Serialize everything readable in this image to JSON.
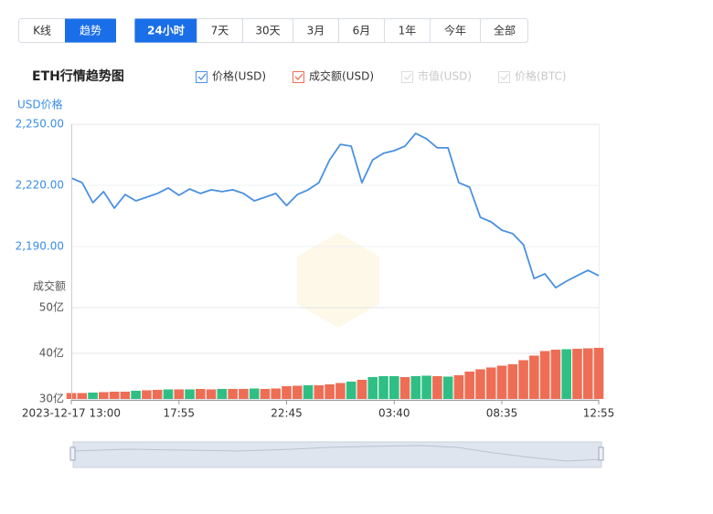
{
  "view_tabs": [
    "K线",
    "趋势"
  ],
  "period_tabs": [
    "24小时",
    "7天",
    "30天",
    "3月",
    "6月",
    "1年",
    "今年",
    "全部"
  ],
  "legend_disabled": [
    "市值(USD)",
    "价格(BTC)"
  ],
  "chart_data": {
    "type": "line",
    "title": "ETH行情趋势图",
    "y_label": "USD价格",
    "y2_label": "成交额",
    "categories": [
      "2023-12-17 13:00",
      null,
      null,
      null,
      null,
      null,
      null,
      null,
      null,
      null,
      "17:55",
      null,
      null,
      null,
      null,
      null,
      null,
      null,
      null,
      null,
      "22:45",
      null,
      null,
      null,
      null,
      null,
      null,
      null,
      null,
      null,
      "03:40",
      null,
      null,
      null,
      null,
      null,
      null,
      null,
      null,
      null,
      "08:35",
      null,
      null,
      null,
      null,
      null,
      null,
      null,
      null,
      "12:55"
    ],
    "ylim": [
      2160,
      2250
    ],
    "yticks": [
      {
        "value": 2190,
        "label": "2,190.00"
      },
      {
        "value": 2220,
        "label": "2,220.00"
      },
      {
        "value": 2250,
        "label": "2,250.00"
      }
    ],
    "y2lim": [
      30,
      50
    ],
    "y2ticks": [
      {
        "value": 30,
        "label": "30亿"
      },
      {
        "value": 40,
        "label": "40亿"
      },
      {
        "value": 50,
        "label": "50亿"
      }
    ],
    "grid": true,
    "series": [
      {
        "name": "价格(USD)",
        "color": "#4a90e2",
        "values": [
          2223.6,
          2221.3,
          2211.5,
          2216.9,
          2208.8,
          2215.5,
          2212.4,
          2214.2,
          2216,
          2218.7,
          2215.1,
          2218.2,
          2216,
          2217.8,
          2216.9,
          2217.8,
          2216,
          2212.4,
          2214.2,
          2216,
          2210.1,
          2215.5,
          2217.8,
          2221.3,
          2232.5,
          2240.1,
          2239.2,
          2221.3,
          2232.5,
          2235.7,
          2237,
          2239.2,
          2245.5,
          2242.8,
          2238.4,
          2238.4,
          2221.3,
          2219.1,
          2204.3,
          2202.1,
          2198,
          2196.3,
          2190.9,
          2174.3,
          2176.6,
          2169.8,
          2173,
          2175.7,
          2178.3,
          2175.7
        ]
      },
      {
        "name": "成交额(USD)",
        "type": "bar",
        "axis": "y2",
        "color": "#ee6e55",
        "values": [
          31.3,
          31.3,
          31.4,
          31.5,
          31.6,
          31.6,
          31.8,
          31.9,
          32,
          32.1,
          32.1,
          32.1,
          32.2,
          32.1,
          32.2,
          32.2,
          32.2,
          32.3,
          32.2,
          32.3,
          32.8,
          32.9,
          33,
          33,
          33.2,
          33.5,
          33.8,
          34.2,
          34.8,
          35,
          35,
          34.8,
          35,
          35.1,
          35,
          34.9,
          35.2,
          36,
          36.5,
          36.9,
          37.3,
          37.6,
          38.5,
          39.5,
          40.5,
          40.8,
          40.9,
          41,
          41.1,
          41.2
        ],
        "colors": [
          "#ee6e55",
          "#ee6e55",
          "#2fbf85",
          "#ee6e55",
          "#ee6e55",
          "#ee6e55",
          "#2fbf85",
          "#ee6e55",
          "#ee6e55",
          "#2fbf85",
          "#ee6e55",
          "#2fbf85",
          "#ee6e55",
          "#ee6e55",
          "#2fbf85",
          "#ee6e55",
          "#ee6e55",
          "#2fbf85",
          "#ee6e55",
          "#ee6e55",
          "#ee6e55",
          "#ee6e55",
          "#2fbf85",
          "#ee6e55",
          "#ee6e55",
          "#ee6e55",
          "#2fbf85",
          "#ee6e55",
          "#2fbf85",
          "#2fbf85",
          "#2fbf85",
          "#ee6e55",
          "#2fbf85",
          "#2fbf85",
          "#ee6e55",
          "#2fbf85",
          "#ee6e55",
          "#ee6e55",
          "#ee6e55",
          "#ee6e55",
          "#ee6e55",
          "#ee6e55",
          "#ee6e55",
          "#ee6e55",
          "#ee6e55",
          "#ee6e55",
          "#2fbf85",
          "#ee6e55",
          "#ee6e55",
          "#ee6e55"
        ]
      }
    ]
  }
}
